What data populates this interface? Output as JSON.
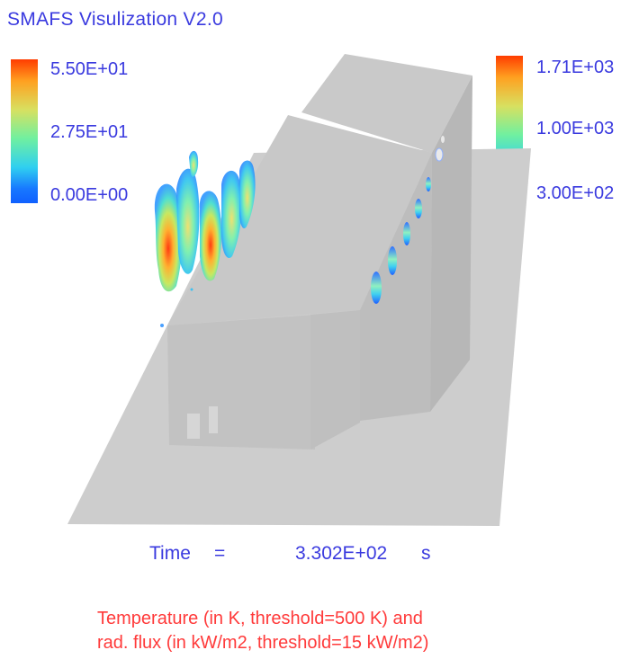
{
  "app": {
    "title": "SMAFS Visulization V2.0"
  },
  "colorbar_left": {
    "max_label": "5.50E+01",
    "mid_label": "2.75E+01",
    "min_label": "0.00E+00"
  },
  "colorbar_right": {
    "max_label": "1.71E+03",
    "mid_label": "1.00E+03",
    "min_label": "3.00E+02"
  },
  "time": {
    "label": "Time",
    "equals": "=",
    "value": "3.302E+02",
    "unit": "s"
  },
  "caption": {
    "line1": "Temperature (in K, threshold=500 K) and",
    "line2": "rad. flux (in kW/m2, threshold=15 kW/m2)"
  },
  "colors": {
    "text_blue": "#3a3adf",
    "caption_red": "#ff3a3a",
    "ground": "#cdcdcd",
    "building": "#c4c4c4"
  }
}
